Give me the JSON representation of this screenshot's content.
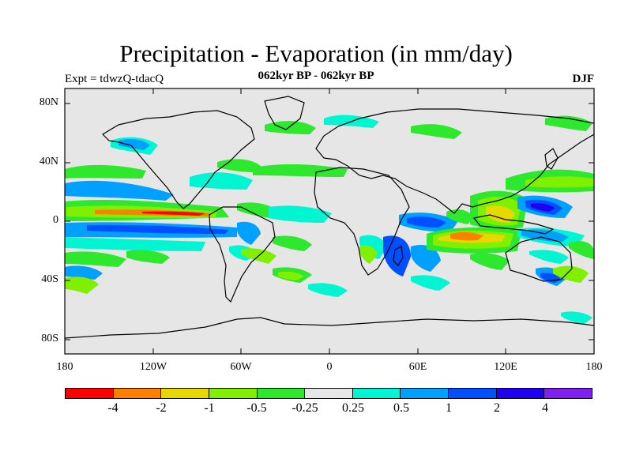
{
  "header": {
    "title": "Precipitation - Evaporation (in mm/day)",
    "subtitle": "062kyr BP - 062kyr BP",
    "experiment": "Expt = tdwzQ-tdacQ",
    "season": "DJF"
  },
  "map": {
    "y_ticks": [
      "80N",
      "40N",
      "0",
      "40S",
      "80S"
    ],
    "x_ticks": [
      "180",
      "120W",
      "60W",
      "0",
      "60E",
      "120E",
      "180"
    ],
    "background_color": "#e6e6e6"
  },
  "colorbar": {
    "labels": [
      "-4",
      "-2",
      "-1",
      "-0.5",
      "-0.25",
      "0.25",
      "0.5",
      "1",
      "2",
      "4"
    ],
    "colors": [
      "#ff0000",
      "#ff8000",
      "#e6d800",
      "#80f000",
      "#2ee82e",
      "#e6e6e6",
      "#00f5d2",
      "#00a0ff",
      "#0050ff",
      "#2000f0",
      "#8020f0"
    ]
  }
}
